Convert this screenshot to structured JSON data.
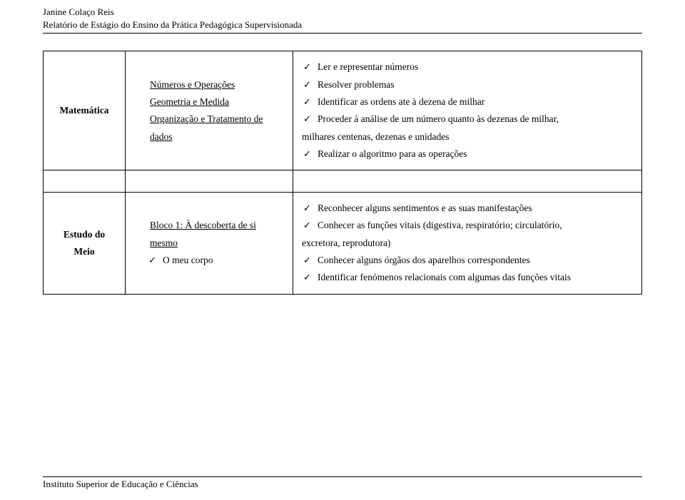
{
  "header": {
    "author": "Janine Colaço Reis",
    "title": "Relatório de Estágio do Ensino da Prática Pedagógica Supervisionada"
  },
  "rows": [
    {
      "subject": "Matemática",
      "topics_underlined": [
        "Números e Operações",
        "Geometria e Medida",
        "Organização e Tratamento de dados"
      ],
      "topics_sub": [],
      "objectives": [
        {
          "text": "Ler e representar números",
          "check": true
        },
        {
          "text": "Resolver problemas",
          "check": true
        },
        {
          "text": "Identificar as ordens ate à dezena de milhar",
          "check": true
        },
        {
          "text": "Proceder à análise de um número quanto às dezenas de milhar,",
          "check": true
        },
        {
          "text": "milhares centenas, dezenas e unidades",
          "check": false
        },
        {
          "text": "Realizar o algoritmo para as operações",
          "check": true
        }
      ]
    },
    {
      "subject": "Estudo do Meio",
      "topics_underlined": [
        "Bloco 1: À descoberta de si mesmo"
      ],
      "topics_sub": [
        "O meu corpo"
      ],
      "objectives": [
        {
          "text": "Reconhecer alguns sentimentos e as suas manifestações",
          "check": true
        },
        {
          "text": "Conhecer as funções vitais (digestiva, respiratório; circulatório,",
          "check": true
        },
        {
          "text": "excretora, reprodutora)",
          "check": false
        },
        {
          "text": "Conhecer alguns órgãos dos aparelhos correspondentes",
          "check": true
        },
        {
          "text": "Identificar fenómenos relacionais com algumas das funções vitais",
          "check": true
        }
      ]
    }
  ],
  "footer": {
    "text": "Instituto Superior de Educação e Ciências"
  }
}
